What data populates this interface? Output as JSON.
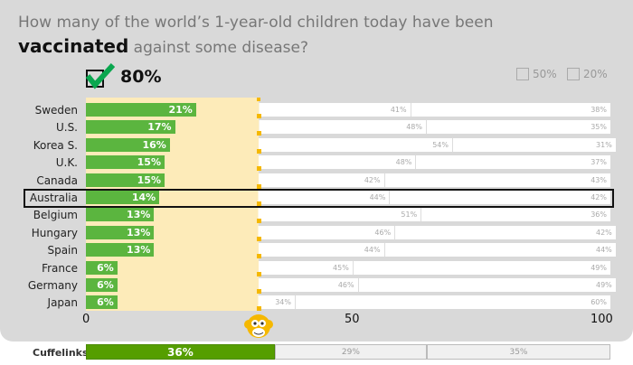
{
  "question": {
    "line1": "How many of the world’s 1-year-old children today have been",
    "bold": "vaccinated",
    "line2_rest": " against some disease?"
  },
  "answers": {
    "selected": "80%",
    "options": [
      "50%",
      "20%"
    ]
  },
  "chart_data": {
    "type": "bar",
    "stacked": true,
    "categories": [
      "Sweden",
      "U.S.",
      "Korea S.",
      "U.K.",
      "Canada",
      "Australia",
      "Belgium",
      "Hungary",
      "Spain",
      "France",
      "Germany",
      "Japan"
    ],
    "highlight": "Australia",
    "series": [
      {
        "name": "correct",
        "color": "#5bb53f",
        "values": [
          21,
          17,
          16,
          15,
          15,
          14,
          13,
          13,
          13,
          6,
          6,
          6
        ]
      },
      {
        "name": "middle",
        "color": "#ffffff",
        "values": [
          41,
          48,
          54,
          48,
          42,
          44,
          51,
          46,
          44,
          45,
          46,
          34
        ]
      },
      {
        "name": "last",
        "color": "#ffffff",
        "values": [
          38,
          35,
          31,
          37,
          43,
          42,
          36,
          42,
          44,
          49,
          49,
          60
        ]
      }
    ],
    "chimp_marker": 33,
    "xlim": [
      0,
      100
    ],
    "xticks": [
      0,
      50,
      100
    ]
  },
  "cuffelinks": {
    "label": "Cuffelinks",
    "values": [
      36,
      29,
      35
    ]
  }
}
